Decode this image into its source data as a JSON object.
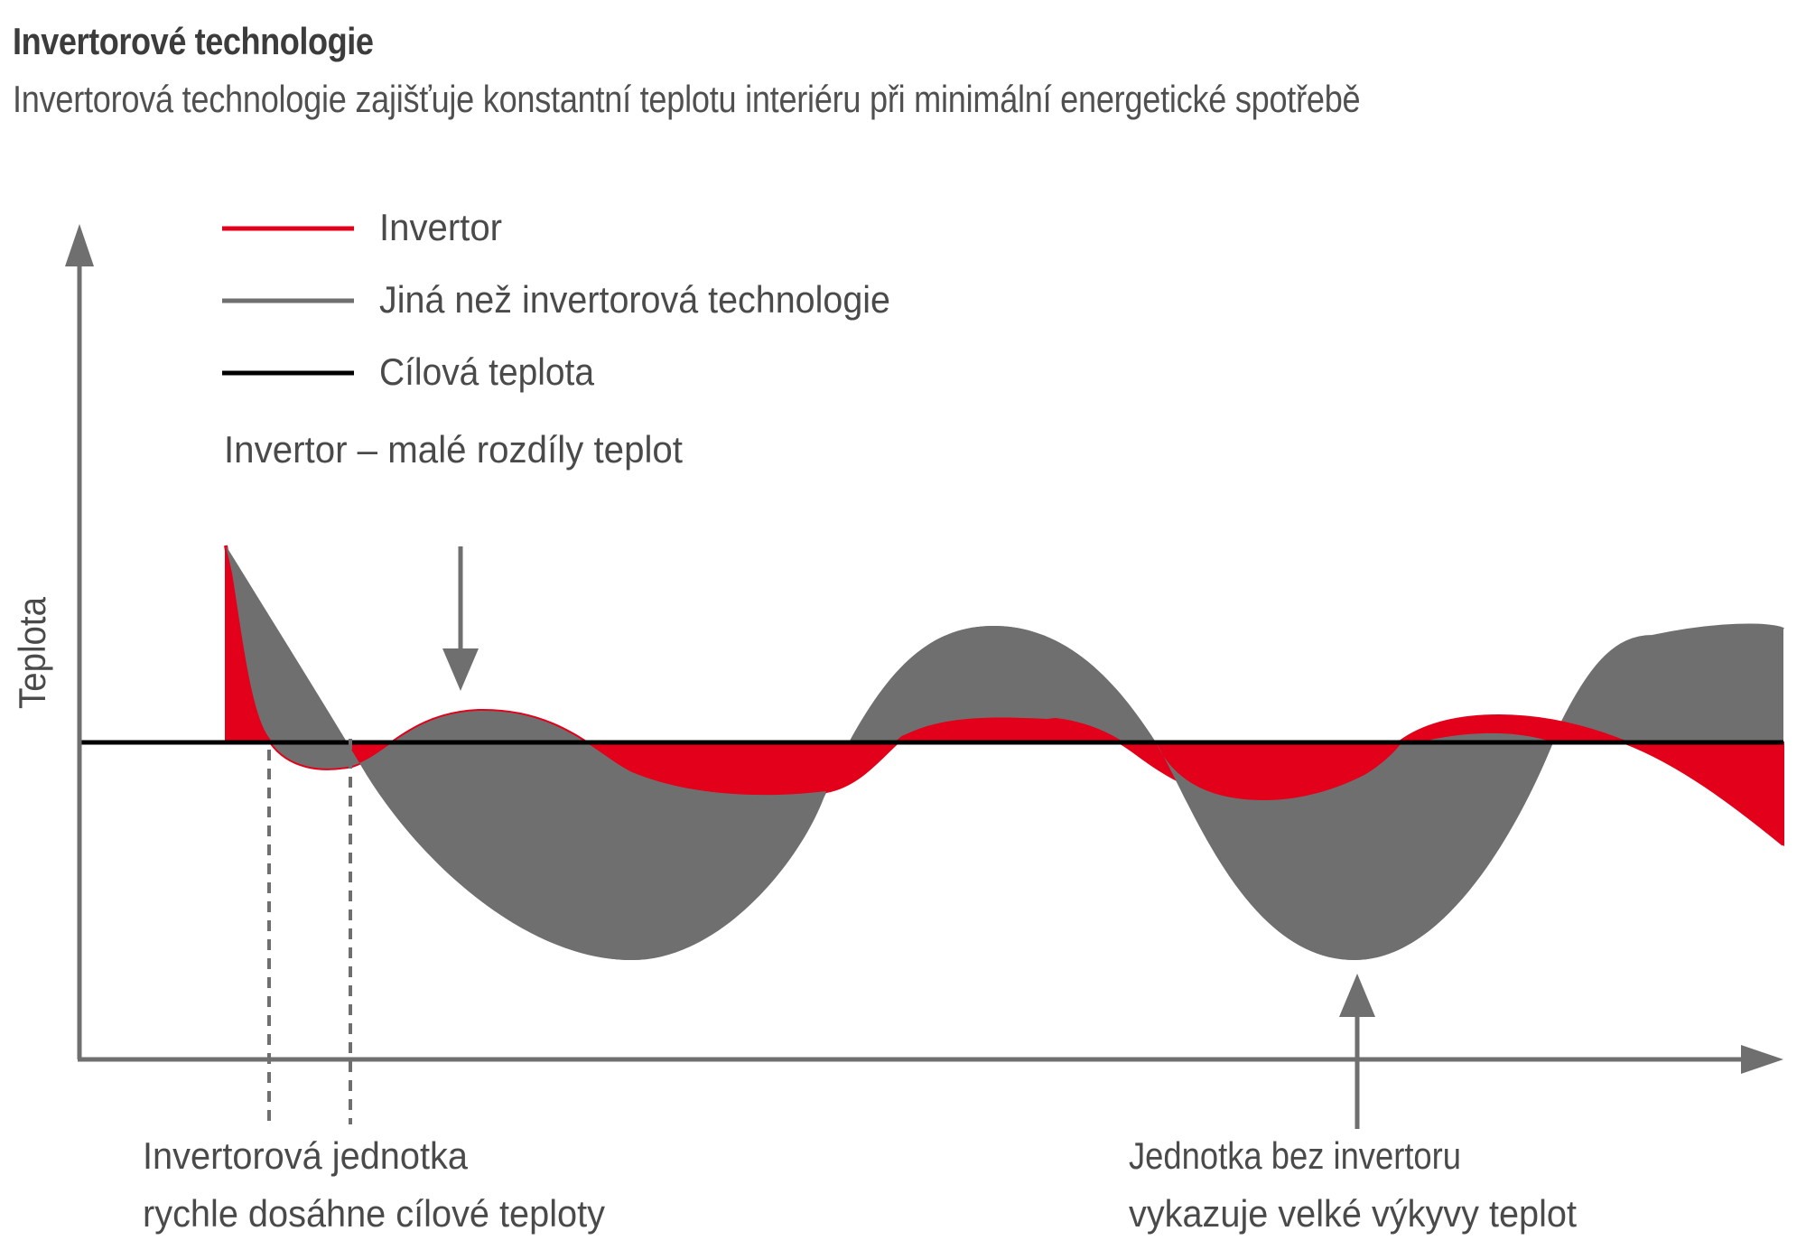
{
  "header": {
    "title": "Invertorové technologie",
    "subtitle": "Invertorová technologie zajišťuje konstantní teplotu interiéru při minimální energetické spotřebě"
  },
  "legend": {
    "items": [
      {
        "label": "Invertor",
        "color": "#e2001a"
      },
      {
        "label": "Jiná než invertorová technologie",
        "color": "#6f6f6f"
      },
      {
        "label": "Cílová teplota",
        "color": "#000000"
      }
    ]
  },
  "axes": {
    "ylabel": "Teplota"
  },
  "annotations": {
    "invertor_note": "Invertor – malé rozdíly teplot",
    "left_note_line1": "Invertorová jednotka",
    "left_note_line2": "rychle dosáhne cílové teploty",
    "right_note_line1": "Jednotka bez invertoru",
    "right_note_line2": "vykazuje velké výkyvy teplot"
  },
  "colors": {
    "invertor": "#e2001a",
    "non_invertor": "#6f6f6f",
    "target": "#000000",
    "axis": "#6f6f6f",
    "text": "#4a4a4a"
  }
}
